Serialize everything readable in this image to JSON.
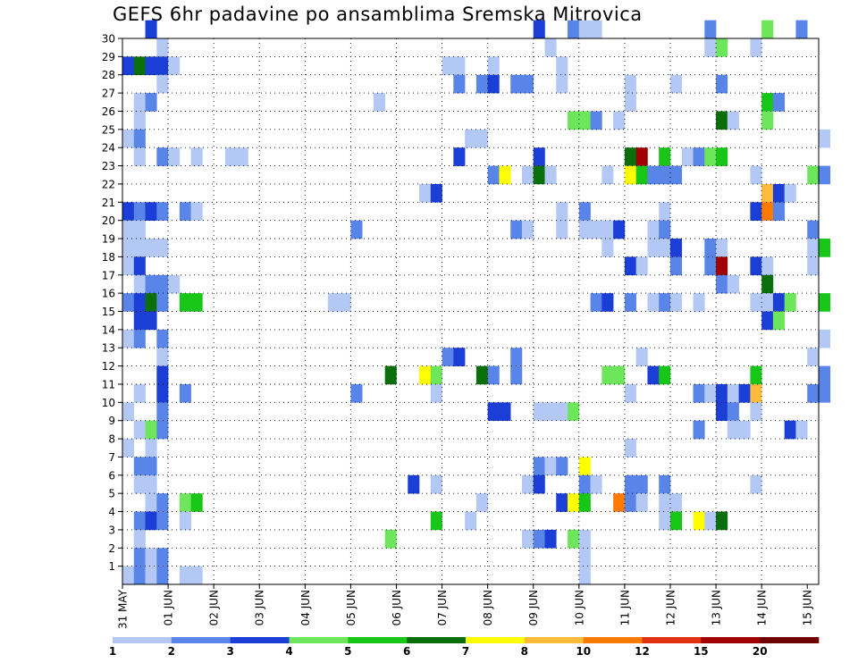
{
  "chart_data": {
    "type": "heatmap",
    "title": "GEFS 6hr padavine po ansamblima Sremska Mitrovica",
    "xlabel": "",
    "ylabel": "",
    "x_ticks": [
      "31 MAY",
      "01 JUN",
      "02 JUN",
      "03 JUN",
      "04 JUN",
      "05 JUN",
      "06 JUN",
      "07 JUN",
      "08 JUN",
      "09 JUN",
      "10 JUN",
      "11 JUN",
      "12 JUN",
      "13 JUN",
      "14 JUN",
      "15 JUN"
    ],
    "x_step_hours": 6,
    "xlim_steps": [
      0,
      61
    ],
    "y_ticks": [
      1,
      2,
      3,
      4,
      5,
      6,
      7,
      8,
      9,
      10,
      11,
      12,
      13,
      14,
      15,
      16,
      17,
      18,
      19,
      20,
      21,
      22,
      23,
      24,
      25,
      26,
      27,
      28,
      29,
      30
    ],
    "ylim": [
      0,
      30
    ],
    "grid": true,
    "colorbar": {
      "labels": [
        "1",
        "2",
        "3",
        "4",
        "5",
        "6",
        "7",
        "8",
        "10",
        "12",
        "15",
        "20"
      ],
      "colors": [
        "#b4c8f5",
        "#5a85e8",
        "#1a3ed6",
        "#6ee65c",
        "#17c617",
        "#0a6e0a",
        "#ffff00",
        "#ffbb3a",
        "#ff7a00",
        "#e03010",
        "#a00000",
        "#6e0000"
      ]
    },
    "cells": [
      [
        30,
        2,
        2
      ],
      [
        30,
        36,
        2
      ],
      [
        30,
        39,
        1
      ],
      [
        30,
        40,
        0
      ],
      [
        30,
        41,
        0
      ],
      [
        30,
        51,
        1
      ],
      [
        30,
        56,
        3
      ],
      [
        30,
        59,
        1
      ],
      [
        29,
        3,
        0
      ],
      [
        29,
        37,
        0
      ],
      [
        29,
        51,
        0
      ],
      [
        29,
        52,
        3
      ],
      [
        29,
        55,
        0
      ],
      [
        28,
        0,
        2
      ],
      [
        28,
        1,
        5
      ],
      [
        28,
        2,
        2
      ],
      [
        28,
        3,
        2
      ],
      [
        28,
        4,
        0
      ],
      [
        28,
        28,
        0
      ],
      [
        28,
        29,
        0
      ],
      [
        28,
        32,
        0
      ],
      [
        28,
        38,
        0
      ],
      [
        27,
        3,
        0
      ],
      [
        27,
        29,
        1
      ],
      [
        27,
        31,
        1
      ],
      [
        27,
        32,
        2
      ],
      [
        27,
        34,
        1
      ],
      [
        27,
        35,
        1
      ],
      [
        27,
        38,
        0
      ],
      [
        27,
        44,
        0
      ],
      [
        27,
        48,
        0
      ],
      [
        27,
        52,
        1
      ],
      [
        26,
        1,
        0
      ],
      [
        26,
        2,
        1
      ],
      [
        26,
        22,
        0
      ],
      [
        26,
        44,
        0
      ],
      [
        26,
        56,
        4
      ],
      [
        26,
        57,
        1
      ],
      [
        25,
        1,
        0
      ],
      [
        25,
        39,
        3
      ],
      [
        25,
        40,
        3
      ],
      [
        25,
        41,
        1
      ],
      [
        25,
        43,
        0
      ],
      [
        25,
        52,
        5
      ],
      [
        25,
        53,
        0
      ],
      [
        25,
        56,
        3
      ],
      [
        24,
        0,
        0
      ],
      [
        24,
        1,
        1
      ],
      [
        24,
        30,
        0
      ],
      [
        24,
        31,
        0
      ],
      [
        24,
        61,
        0
      ],
      [
        23,
        1,
        0
      ],
      [
        23,
        3,
        1
      ],
      [
        23,
        4,
        0
      ],
      [
        23,
        6,
        0
      ],
      [
        23,
        9,
        0
      ],
      [
        23,
        10,
        0
      ],
      [
        23,
        29,
        2
      ],
      [
        23,
        36,
        2
      ],
      [
        23,
        44,
        5
      ],
      [
        23,
        45,
        10
      ],
      [
        23,
        47,
        4
      ],
      [
        23,
        49,
        0
      ],
      [
        23,
        50,
        1
      ],
      [
        23,
        51,
        3
      ],
      [
        23,
        52,
        4
      ],
      [
        22,
        32,
        1
      ],
      [
        22,
        33,
        6
      ],
      [
        22,
        35,
        0
      ],
      [
        22,
        36,
        5
      ],
      [
        22,
        37,
        0
      ],
      [
        22,
        42,
        0
      ],
      [
        22,
        44,
        6
      ],
      [
        22,
        45,
        4
      ],
      [
        22,
        46,
        1
      ],
      [
        22,
        47,
        1
      ],
      [
        22,
        48,
        1
      ],
      [
        22,
        55,
        0
      ],
      [
        22,
        60,
        3
      ],
      [
        22,
        61,
        1
      ],
      [
        21,
        26,
        0
      ],
      [
        21,
        27,
        2
      ],
      [
        21,
        56,
        7
      ],
      [
        21,
        57,
        2
      ],
      [
        21,
        58,
        0
      ],
      [
        20,
        0,
        2
      ],
      [
        20,
        1,
        1
      ],
      [
        20,
        2,
        2
      ],
      [
        20,
        3,
        1
      ],
      [
        20,
        5,
        1
      ],
      [
        20,
        6,
        0
      ],
      [
        20,
        38,
        0
      ],
      [
        20,
        40,
        1
      ],
      [
        20,
        47,
        0
      ],
      [
        20,
        55,
        2
      ],
      [
        20,
        56,
        8
      ],
      [
        20,
        57,
        1
      ],
      [
        19,
        0,
        0
      ],
      [
        19,
        1,
        0
      ],
      [
        19,
        20,
        1
      ],
      [
        19,
        34,
        1
      ],
      [
        19,
        35,
        0
      ],
      [
        19,
        38,
        0
      ],
      [
        19,
        40,
        0
      ],
      [
        19,
        41,
        0
      ],
      [
        19,
        42,
        0
      ],
      [
        19,
        43,
        2
      ],
      [
        19,
        46,
        0
      ],
      [
        19,
        47,
        1
      ],
      [
        19,
        60,
        1
      ],
      [
        18,
        0,
        0
      ],
      [
        18,
        1,
        0
      ],
      [
        18,
        2,
        0
      ],
      [
        18,
        3,
        0
      ],
      [
        18,
        42,
        0
      ],
      [
        18,
        46,
        0
      ],
      [
        18,
        47,
        0
      ],
      [
        18,
        48,
        2
      ],
      [
        18,
        51,
        1
      ],
      [
        18,
        52,
        0
      ],
      [
        18,
        60,
        0
      ],
      [
        18,
        61,
        4
      ],
      [
        17,
        0,
        0
      ],
      [
        17,
        1,
        2
      ],
      [
        17,
        44,
        2
      ],
      [
        17,
        45,
        0
      ],
      [
        17,
        48,
        1
      ],
      [
        17,
        51,
        1
      ],
      [
        17,
        52,
        10
      ],
      [
        17,
        55,
        2
      ],
      [
        17,
        56,
        0
      ],
      [
        17,
        60,
        0
      ],
      [
        16,
        1,
        0
      ],
      [
        16,
        2,
        1
      ],
      [
        16,
        3,
        1
      ],
      [
        16,
        4,
        0
      ],
      [
        16,
        52,
        1
      ],
      [
        16,
        53,
        0
      ],
      [
        16,
        56,
        5
      ],
      [
        15,
        0,
        1
      ],
      [
        15,
        1,
        2
      ],
      [
        15,
        2,
        5
      ],
      [
        15,
        3,
        1
      ],
      [
        15,
        5,
        4
      ],
      [
        15,
        6,
        4
      ],
      [
        15,
        18,
        0
      ],
      [
        15,
        19,
        0
      ],
      [
        15,
        41,
        1
      ],
      [
        15,
        42,
        2
      ],
      [
        15,
        44,
        1
      ],
      [
        15,
        46,
        0
      ],
      [
        15,
        47,
        1
      ],
      [
        15,
        48,
        0
      ],
      [
        15,
        50,
        0
      ],
      [
        15,
        55,
        0
      ],
      [
        15,
        56,
        0
      ],
      [
        15,
        57,
        2
      ],
      [
        15,
        58,
        3
      ],
      [
        15,
        61,
        4
      ],
      [
        14,
        1,
        2
      ],
      [
        14,
        2,
        2
      ],
      [
        14,
        56,
        2
      ],
      [
        14,
        57,
        3
      ],
      [
        13,
        0,
        0
      ],
      [
        13,
        1,
        1
      ],
      [
        13,
        3,
        1
      ],
      [
        13,
        61,
        0
      ],
      [
        12,
        3,
        0
      ],
      [
        12,
        28,
        1
      ],
      [
        12,
        29,
        2
      ],
      [
        12,
        34,
        1
      ],
      [
        12,
        45,
        0
      ],
      [
        12,
        60,
        0
      ],
      [
        11,
        3,
        2
      ],
      [
        11,
        23,
        5
      ],
      [
        11,
        26,
        6
      ],
      [
        11,
        27,
        3
      ],
      [
        11,
        31,
        5
      ],
      [
        11,
        32,
        1
      ],
      [
        11,
        34,
        1
      ],
      [
        11,
        42,
        3
      ],
      [
        11,
        43,
        3
      ],
      [
        11,
        46,
        2
      ],
      [
        11,
        47,
        4
      ],
      [
        11,
        55,
        4
      ],
      [
        11,
        61,
        1
      ],
      [
        10,
        1,
        0
      ],
      [
        10,
        3,
        2
      ],
      [
        10,
        5,
        1
      ],
      [
        10,
        20,
        1
      ],
      [
        10,
        27,
        0
      ],
      [
        10,
        44,
        0
      ],
      [
        10,
        50,
        1
      ],
      [
        10,
        51,
        0
      ],
      [
        10,
        52,
        2
      ],
      [
        10,
        53,
        0
      ],
      [
        10,
        54,
        2
      ],
      [
        10,
        55,
        7
      ],
      [
        10,
        60,
        1
      ],
      [
        10,
        61,
        1
      ],
      [
        9,
        0,
        0
      ],
      [
        9,
        3,
        1
      ],
      [
        9,
        32,
        2
      ],
      [
        9,
        33,
        2
      ],
      [
        9,
        36,
        0
      ],
      [
        9,
        37,
        0
      ],
      [
        9,
        38,
        0
      ],
      [
        9,
        39,
        3
      ],
      [
        9,
        52,
        2
      ],
      [
        9,
        53,
        1
      ],
      [
        9,
        55,
        0
      ],
      [
        8,
        1,
        0
      ],
      [
        8,
        2,
        3
      ],
      [
        8,
        3,
        1
      ],
      [
        8,
        50,
        1
      ],
      [
        8,
        53,
        0
      ],
      [
        8,
        54,
        0
      ],
      [
        8,
        58,
        2
      ],
      [
        8,
        59,
        0
      ],
      [
        7,
        0,
        0
      ],
      [
        7,
        2,
        0
      ],
      [
        7,
        44,
        0
      ],
      [
        6,
        1,
        1
      ],
      [
        6,
        2,
        1
      ],
      [
        6,
        36,
        1
      ],
      [
        6,
        37,
        0
      ],
      [
        6,
        38,
        1
      ],
      [
        6,
        40,
        6
      ],
      [
        5,
        1,
        0
      ],
      [
        5,
        2,
        0
      ],
      [
        5,
        25,
        2
      ],
      [
        5,
        27,
        0
      ],
      [
        5,
        35,
        0
      ],
      [
        5,
        36,
        2
      ],
      [
        5,
        40,
        1
      ],
      [
        5,
        41,
        0
      ],
      [
        5,
        44,
        1
      ],
      [
        5,
        45,
        1
      ],
      [
        5,
        47,
        1
      ],
      [
        5,
        55,
        0
      ],
      [
        4,
        2,
        0
      ],
      [
        4,
        3,
        1
      ],
      [
        4,
        5,
        3
      ],
      [
        4,
        6,
        4
      ],
      [
        4,
        31,
        0
      ],
      [
        4,
        38,
        2
      ],
      [
        4,
        39,
        6
      ],
      [
        4,
        40,
        4
      ],
      [
        4,
        43,
        8
      ],
      [
        4,
        44,
        1
      ],
      [
        4,
        45,
        0
      ],
      [
        4,
        47,
        0
      ],
      [
        4,
        48,
        0
      ],
      [
        3,
        1,
        1
      ],
      [
        3,
        2,
        2
      ],
      [
        3,
        3,
        1
      ],
      [
        3,
        5,
        0
      ],
      [
        3,
        27,
        4
      ],
      [
        3,
        30,
        0
      ],
      [
        3,
        47,
        0
      ],
      [
        3,
        48,
        4
      ],
      [
        3,
        50,
        6
      ],
      [
        3,
        51,
        0
      ],
      [
        3,
        52,
        5
      ],
      [
        2,
        1,
        0
      ],
      [
        2,
        23,
        3
      ],
      [
        2,
        35,
        0
      ],
      [
        2,
        36,
        1
      ],
      [
        2,
        37,
        2
      ],
      [
        2,
        39,
        3
      ],
      [
        2,
        40,
        0
      ],
      [
        1,
        1,
        1
      ],
      [
        1,
        2,
        0
      ],
      [
        1,
        3,
        1
      ],
      [
        1,
        40,
        0
      ],
      [
        0,
        0,
        0
      ],
      [
        0,
        1,
        1
      ],
      [
        0,
        2,
        0
      ],
      [
        0,
        3,
        1
      ],
      [
        0,
        5,
        0
      ],
      [
        0,
        6,
        0
      ],
      [
        0,
        40,
        0
      ]
    ]
  }
}
